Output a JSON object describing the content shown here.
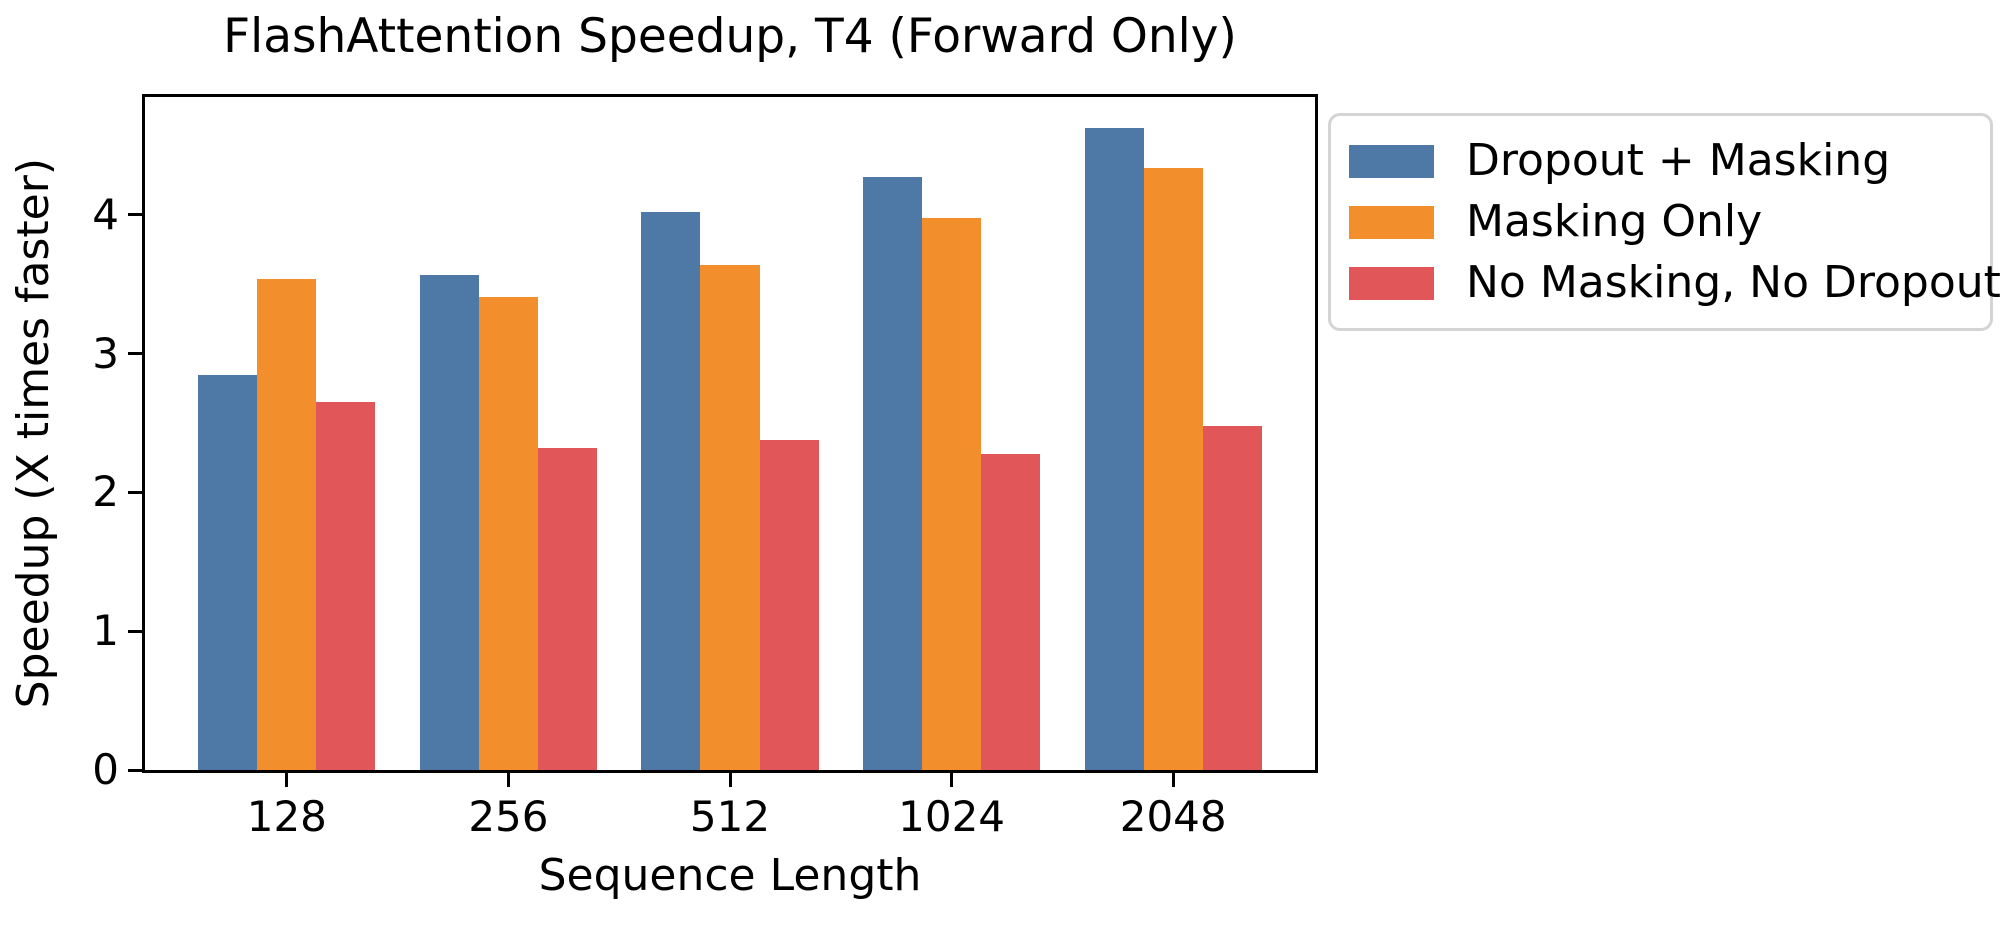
{
  "chart_data": {
    "type": "bar",
    "title": "FlashAttention Speedup, T4 (Forward Only)",
    "xlabel": "Sequence Length",
    "ylabel": "Speedup (X times faster)",
    "categories": [
      "128",
      "256",
      "512",
      "1024",
      "2048"
    ],
    "series": [
      {
        "name": "Dropout + Masking",
        "color": "#4e79a7",
        "values": [
          2.85,
          3.57,
          4.02,
          4.27,
          4.63
        ]
      },
      {
        "name": "Masking Only",
        "color": "#f28e2c",
        "values": [
          3.54,
          3.41,
          3.64,
          3.98,
          4.34
        ]
      },
      {
        "name": "No Masking, No Dropout",
        "color": "#e15759",
        "values": [
          2.65,
          2.32,
          2.38,
          2.28,
          2.48
        ]
      }
    ],
    "yticks": [
      0,
      1,
      2,
      3,
      4
    ],
    "ylim": [
      0,
      4.85
    ],
    "grid": false,
    "legend_position": "upper right, outside axes",
    "background_color": "#ffffff",
    "spine_color": "#000000",
    "legend_border_color": "#d4d4d4"
  }
}
